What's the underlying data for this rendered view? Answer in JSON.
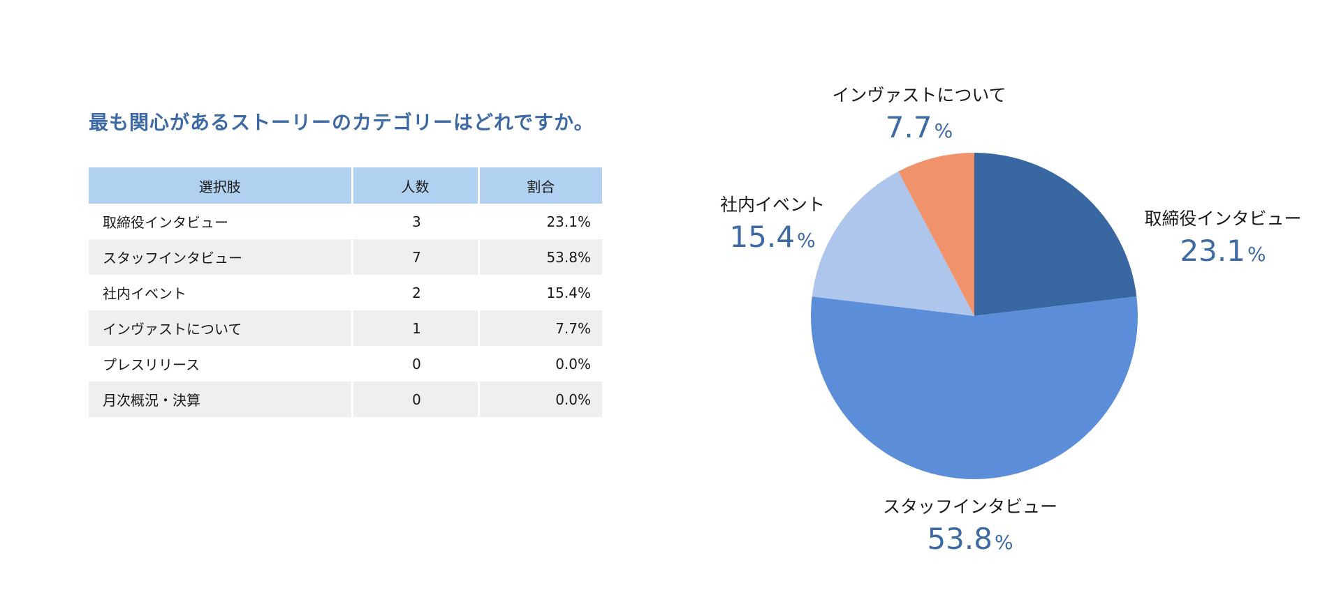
{
  "question": "最も関心があるストーリーのカテゴリーはどれですか。",
  "table": {
    "headers": [
      "選択肢",
      "人数",
      "割合"
    ],
    "rows": [
      {
        "choice": "取締役インタビュー",
        "count": "3",
        "ratio": "23.1%"
      },
      {
        "choice": "スタッフインタビュー",
        "count": "7",
        "ratio": "53.8%"
      },
      {
        "choice": "社内イベント",
        "count": "2",
        "ratio": "15.4%"
      },
      {
        "choice": "インヴァストについて",
        "count": "1",
        "ratio": "7.7%"
      },
      {
        "choice": "プレスリリース",
        "count": "0",
        "ratio": "0.0%"
      },
      {
        "choice": "月次概況・決算",
        "count": "0",
        "ratio": "0.0%"
      }
    ]
  },
  "chart_data": {
    "type": "pie",
    "unit": "%",
    "slices": [
      {
        "label": "取締役インタビュー",
        "value": 23.1,
        "value_text": "23.1",
        "color": "#3867a2"
      },
      {
        "label": "スタッフインタビュー",
        "value": 53.8,
        "value_text": "53.8",
        "color": "#5b8dd9"
      },
      {
        "label": "社内イベント",
        "value": 15.4,
        "value_text": "15.4",
        "color": "#aec6ec"
      },
      {
        "label": "インヴァストについて",
        "value": 7.7,
        "value_text": "7.7",
        "color": "#f0926a"
      }
    ]
  }
}
